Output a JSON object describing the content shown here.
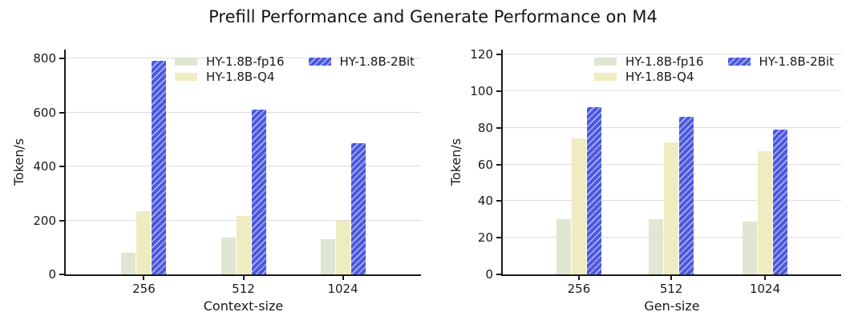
{
  "title": "Prefill Performance and Generate Performance on M4",
  "colors": {
    "background": "#ffffff",
    "grid": "#dcdcdc",
    "axis": "#1a1a1a",
    "fp16_bar": "#dfe6d1",
    "q4_bar": "#f0ecc1",
    "twobit_bar": "#4c57df",
    "twobit_hatch": "#aab3f0"
  },
  "chart_data": [
    {
      "type": "bar",
      "name": "prefill-performance",
      "xlabel": "Context-size",
      "ylabel": "Token/s",
      "categories": [
        "256",
        "512",
        "1024"
      ],
      "series": [
        {
          "name": "HY-1.8B-fp16",
          "values": [
            80,
            135,
            130
          ],
          "color": "#dfe6d1",
          "hatch": false
        },
        {
          "name": "HY-1.8B-Q4",
          "values": [
            235,
            215,
            200
          ],
          "color": "#f0ecc1",
          "hatch": false
        },
        {
          "name": "HY-1.8B-2Bit",
          "values": [
            792,
            610,
            485
          ],
          "color": "#4c57df",
          "hatch": true,
          "hatch_color": "#aab3f0"
        }
      ],
      "ylim": [
        0,
        800
      ],
      "yticks": [
        0,
        200,
        400,
        600,
        800
      ],
      "grid": true,
      "legend_position": "upper-inside-two-columns"
    },
    {
      "type": "bar",
      "name": "generate-performance",
      "xlabel": "Gen-size",
      "ylabel": "Token/s",
      "categories": [
        "256",
        "512",
        "1024"
      ],
      "series": [
        {
          "name": "HY-1.8B-fp16",
          "values": [
            30,
            30,
            29
          ],
          "color": "#dfe6d1",
          "hatch": false
        },
        {
          "name": "HY-1.8B-Q4",
          "values": [
            74,
            72,
            67
          ],
          "color": "#f0ecc1",
          "hatch": false
        },
        {
          "name": "HY-1.8B-2Bit",
          "values": [
            91,
            86,
            79
          ],
          "color": "#4c57df",
          "hatch": true,
          "hatch_color": "#aab3f0"
        }
      ],
      "ylim": [
        0,
        120
      ],
      "yticks": [
        0,
        20,
        40,
        60,
        80,
        100,
        120
      ],
      "grid": true,
      "legend_position": "upper-inside-two-columns"
    }
  ]
}
